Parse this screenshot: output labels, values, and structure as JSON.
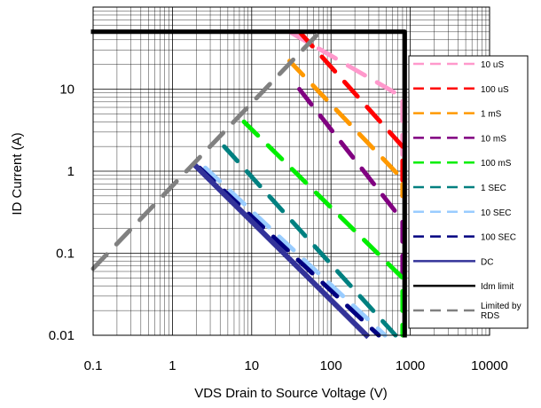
{
  "chart_data": {
    "type": "line",
    "title": "",
    "xlabel": "VDS Drain to Source Voltage (V)",
    "ylabel": "ID Current (A)",
    "x_scale": "log",
    "y_scale": "log",
    "xlim": [
      0.1,
      10000
    ],
    "ylim": [
      0.01,
      100
    ],
    "grid": true,
    "legend_position": "right",
    "x_ticks": [
      "0.1",
      "1",
      "10",
      "100",
      "1000",
      "10000"
    ],
    "y_ticks": [
      "10",
      "1",
      "0.1",
      "0.01"
    ],
    "series": [
      {
        "name": "10 uS",
        "color": "#ff99cc",
        "dash": true,
        "points": [
          [
            30,
            50
          ],
          [
            800,
            8
          ],
          [
            800,
            0.85
          ]
        ]
      },
      {
        "name": "100 uS",
        "color": "#ff0000",
        "dash": true,
        "points": [
          [
            40,
            50
          ],
          [
            800,
            2
          ],
          [
            800,
            0.5
          ]
        ]
      },
      {
        "name": "1 mS",
        "color": "#ff9900",
        "dash": true,
        "points": [
          [
            30,
            22
          ],
          [
            800,
            0.8
          ],
          [
            800,
            0.5
          ]
        ]
      },
      {
        "name": "10 mS",
        "color": "#800080",
        "dash": true,
        "points": [
          [
            40,
            10
          ],
          [
            800,
            0.25
          ],
          [
            800,
            0.05
          ]
        ]
      },
      {
        "name": "100 mS",
        "color": "#00ee00",
        "dash": true,
        "points": [
          [
            8,
            4
          ],
          [
            800,
            0.05
          ],
          [
            800,
            0.01
          ]
        ]
      },
      {
        "name": "1 SEC",
        "color": "#008080",
        "dash": true,
        "points": [
          [
            4.5,
            2
          ],
          [
            650,
            0.01
          ]
        ]
      },
      {
        "name": "10 SEC",
        "color": "#99ccff",
        "dash": true,
        "points": [
          [
            2.6,
            1.1
          ],
          [
            480,
            0.01
          ]
        ]
      },
      {
        "name": "100 SEC",
        "color": "#000080",
        "dash": true,
        "points": [
          [
            2.2,
            1.1
          ],
          [
            400,
            0.01
          ]
        ]
      },
      {
        "name": "DC",
        "color": "#333399",
        "dash": false,
        "points": [
          [
            1.9,
            1.2
          ],
          [
            280,
            0.01
          ]
        ]
      },
      {
        "name": "Idm limit",
        "color": "#000000",
        "dash": false,
        "points": [
          [
            0.1,
            50
          ],
          [
            850,
            50
          ],
          [
            850,
            0.01
          ]
        ]
      },
      {
        "name": "Limited by RDS",
        "color": "#808080",
        "dash": true,
        "points": [
          [
            0.1,
            0.065
          ],
          [
            80,
            55
          ]
        ]
      }
    ]
  }
}
